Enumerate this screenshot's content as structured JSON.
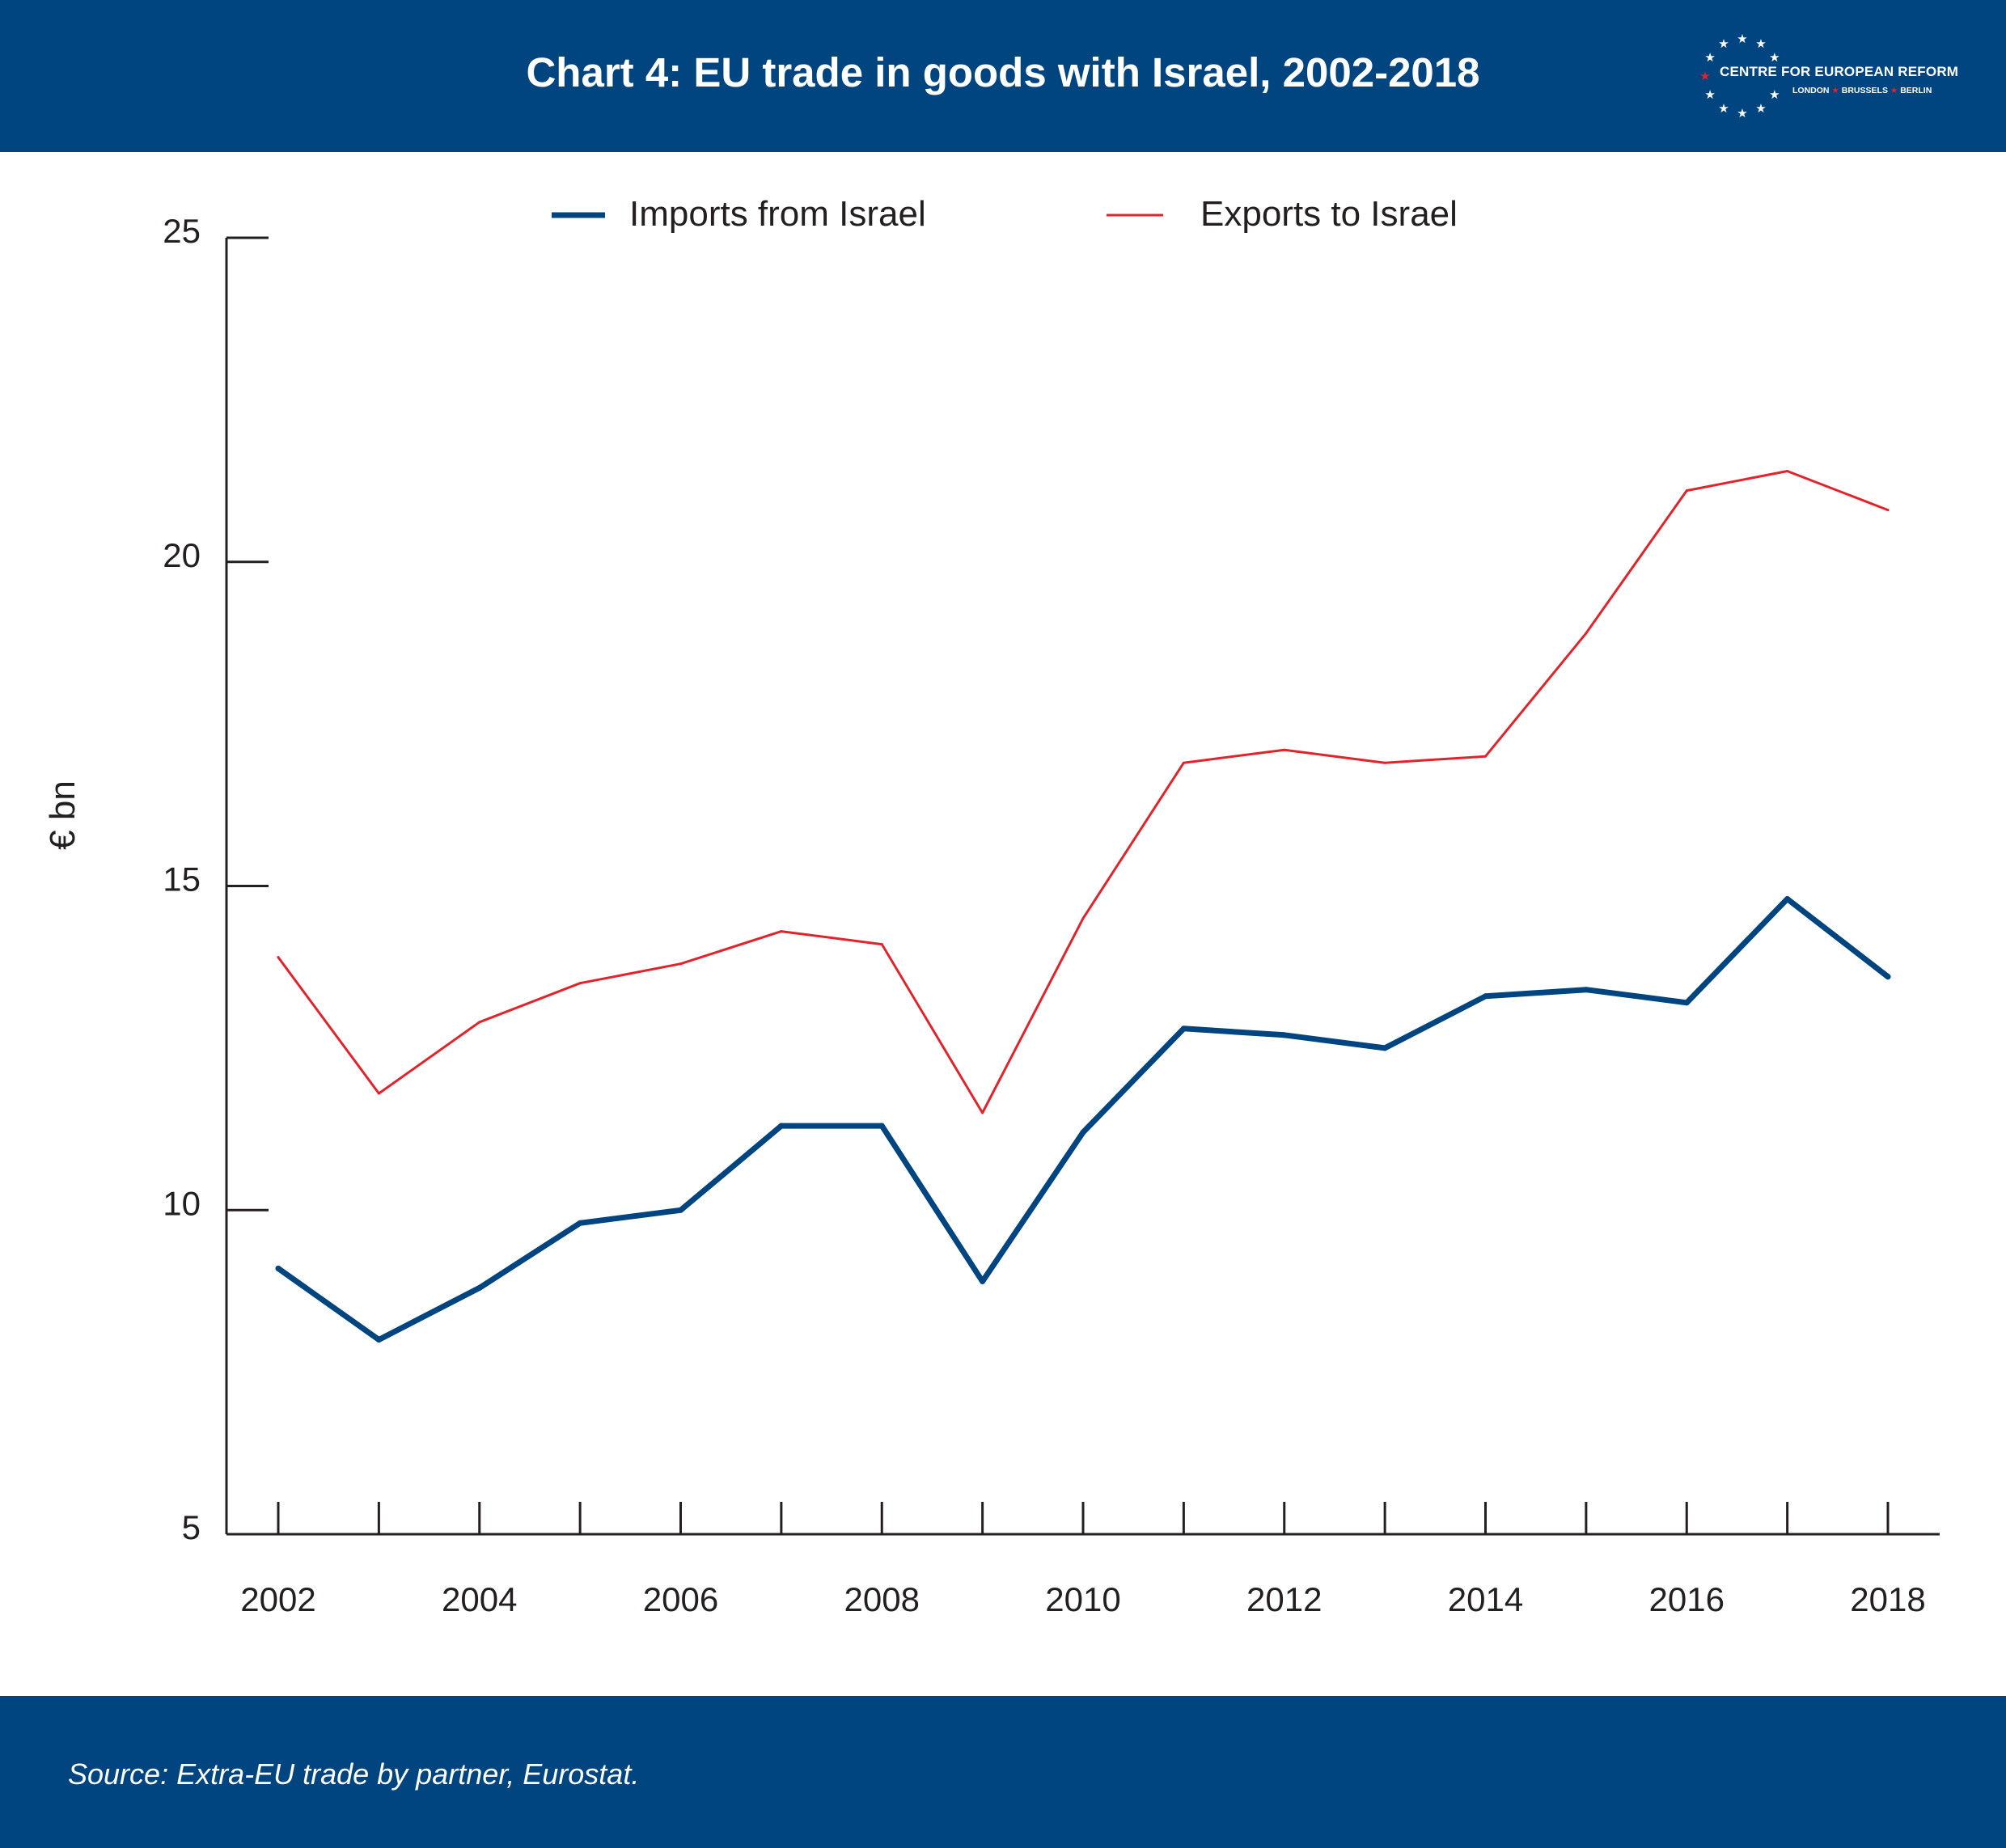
{
  "header": {
    "title": "Chart 4: EU trade in goods with Israel, 2002-2018",
    "logo": {
      "name": "CENTRE FOR EUROPEAN REFORM",
      "cities": [
        "LONDON",
        "BRUSSELS",
        "BERLIN"
      ]
    }
  },
  "footer": {
    "source": "Source: Extra-EU trade by partner, Eurostat."
  },
  "colors": {
    "brand": "#004580",
    "imports": "#004580",
    "exports": "#e3232b",
    "axis": "#231f20"
  },
  "chart_data": {
    "type": "line",
    "title": "Chart 4: EU trade in goods with Israel, 2002-2018",
    "ylabel": "€ bn",
    "xlabel": "",
    "x": [
      2002,
      2003,
      2004,
      2005,
      2006,
      2007,
      2008,
      2009,
      2010,
      2011,
      2012,
      2013,
      2014,
      2015,
      2016,
      2017,
      2018
    ],
    "x_tick_labels": [
      "2002",
      "2004",
      "2006",
      "2008",
      "2010",
      "2012",
      "2014",
      "2016",
      "2018"
    ],
    "y_ticks": [
      5,
      10,
      15,
      20,
      25
    ],
    "ylim": [
      5,
      25
    ],
    "grid": false,
    "legend_position": "top-center",
    "series": [
      {
        "name": "Imports from Israel",
        "color": "#004580",
        "values": [
          9.1,
          8.0,
          8.8,
          9.8,
          10.0,
          11.3,
          11.3,
          8.9,
          11.2,
          12.8,
          12.7,
          12.5,
          13.3,
          13.4,
          13.2,
          14.8,
          13.6
        ]
      },
      {
        "name": "Exports to Israel",
        "color": "#e3232b",
        "values": [
          13.9,
          11.8,
          12.9,
          13.5,
          13.8,
          14.3,
          14.1,
          11.5,
          14.5,
          16.9,
          17.1,
          16.9,
          17.0,
          18.9,
          21.1,
          21.4,
          20.8
        ]
      }
    ]
  }
}
